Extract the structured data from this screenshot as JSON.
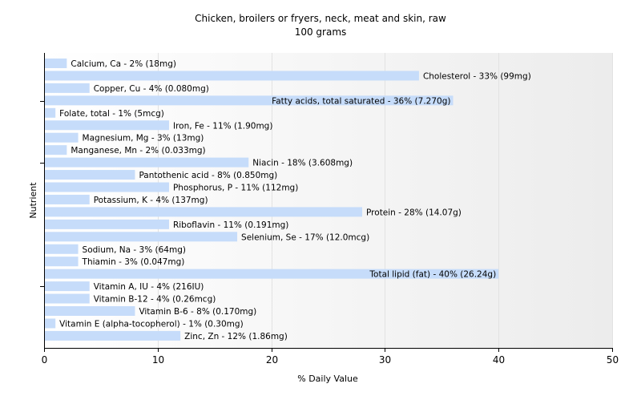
{
  "chart_data": {
    "type": "bar",
    "orientation": "horizontal",
    "title": "Chicken, broilers or fryers, neck, meat and skin, raw",
    "subtitle": "100 grams",
    "xlabel": "% Daily Value",
    "ylabel": "Nutrient",
    "xlim": [
      0,
      50
    ],
    "xticks": [
      0,
      10,
      20,
      30,
      40,
      50
    ],
    "grid": true,
    "legend": "none",
    "bar_color": "#c6dcfa",
    "categories": [
      "Calcium, Ca",
      "Cholesterol",
      "Copper, Cu",
      "Fatty acids, total saturated",
      "Folate, total",
      "Iron, Fe",
      "Magnesium, Mg",
      "Manganese, Mn",
      "Niacin",
      "Pantothenic acid",
      "Phosphorus, P",
      "Potassium, K",
      "Protein",
      "Riboflavin",
      "Selenium, Se",
      "Sodium, Na",
      "Thiamin",
      "Total lipid (fat)",
      "Vitamin A, IU",
      "Vitamin B-12",
      "Vitamin B-6",
      "Vitamin E (alpha-tocopherol)",
      "Zinc, Zn"
    ],
    "values": [
      2,
      33,
      4,
      36,
      1,
      11,
      3,
      2,
      18,
      8,
      11,
      4,
      28,
      11,
      17,
      3,
      3,
      40,
      4,
      4,
      8,
      1,
      12
    ],
    "labels": [
      "Calcium, Ca - 2% (18mg)",
      "Cholesterol - 33% (99mg)",
      "Copper, Cu - 4% (0.080mg)",
      "Fatty acids, total saturated - 36% (7.270g)",
      "Folate, total - 1% (5mcg)",
      "Iron, Fe - 11% (1.90mg)",
      "Magnesium, Mg - 3% (13mg)",
      "Manganese, Mn - 2% (0.033mg)",
      "Niacin - 18% (3.608mg)",
      "Pantothenic acid - 8% (0.850mg)",
      "Phosphorus, P - 11% (112mg)",
      "Potassium, K - 4% (137mg)",
      "Protein - 28% (14.07g)",
      "Riboflavin - 11% (0.191mg)",
      "Selenium, Se - 17% (12.0mcg)",
      "Sodium, Na - 3% (64mg)",
      "Thiamin - 3% (0.047mg)",
      "Total lipid (fat) - 40% (26.24g)",
      "Vitamin A, IU - 4% (216IU)",
      "Vitamin B-12 - 4% (0.26mcg)",
      "Vitamin B-6 - 8% (0.170mg)",
      "Vitamin E (alpha-tocopherol) - 1% (0.30mg)",
      "Zinc, Zn - 12% (1.86mg)"
    ]
  }
}
